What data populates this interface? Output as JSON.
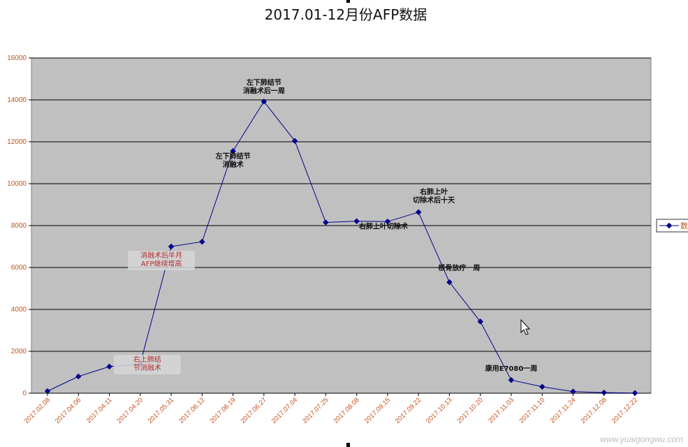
{
  "chart_data": {
    "type": "line",
    "title": "2017.01-12月份AFP数据",
    "xlabel": "",
    "ylabel": "",
    "ylim": [
      0,
      16000
    ],
    "yticks": [
      0,
      2000,
      4000,
      6000,
      8000,
      10000,
      12000,
      14000,
      16000
    ],
    "grid": true,
    "legend": "right",
    "categories": [
      "2017.02.08",
      "2017.04.06",
      "2017.04.11",
      "2017.04.20",
      "2017.05.31",
      "2017.06.12",
      "2017.06.19",
      "2017.06.27",
      "2017.07.04",
      "2017.07.25",
      "2017.08.08",
      "2017.09.15",
      "2017.09.22",
      "2017.10.13",
      "2017.10.20",
      "2017.11.03",
      "2017.11.10",
      "2017.11.24",
      "2017.12.08",
      "2017.12.22"
    ],
    "series": [
      {
        "name": "数",
        "color": "#00008b",
        "values": [
          100,
          800,
          1270,
          1400,
          7000,
          7230,
          11560,
          13920,
          12040,
          8150,
          8210,
          8190,
          8640,
          5300,
          3420,
          630,
          310,
          80,
          30,
          10
        ]
      }
    ],
    "annotations": [
      {
        "lines": [
          "左下肺结节",
          "消融术后一周"
        ],
        "index": 7,
        "style": "dark"
      },
      {
        "lines": [
          "左下肺结节",
          "消融术"
        ],
        "index": 6,
        "style": "dark"
      },
      {
        "lines": [
          "右肺上叶",
          "切除术后十天"
        ],
        "index": 12,
        "style": "dark"
      },
      {
        "lines": [
          "右肺上叶切除术"
        ],
        "index": 11,
        "style": "dark"
      },
      {
        "lines": [
          "根骨放疗一周"
        ],
        "index": 13,
        "style": "dark"
      },
      {
        "lines": [
          "康用E7080一周"
        ],
        "index": 15,
        "style": "dark"
      },
      {
        "lines": [
          "消融术后半月",
          "AFP继续增高"
        ],
        "index": 4,
        "style": "red"
      },
      {
        "lines": [
          "右上肺结",
          "节消融术"
        ],
        "index": 3,
        "style": "red"
      }
    ]
  },
  "watermark": "www.yuaigongwu.com"
}
